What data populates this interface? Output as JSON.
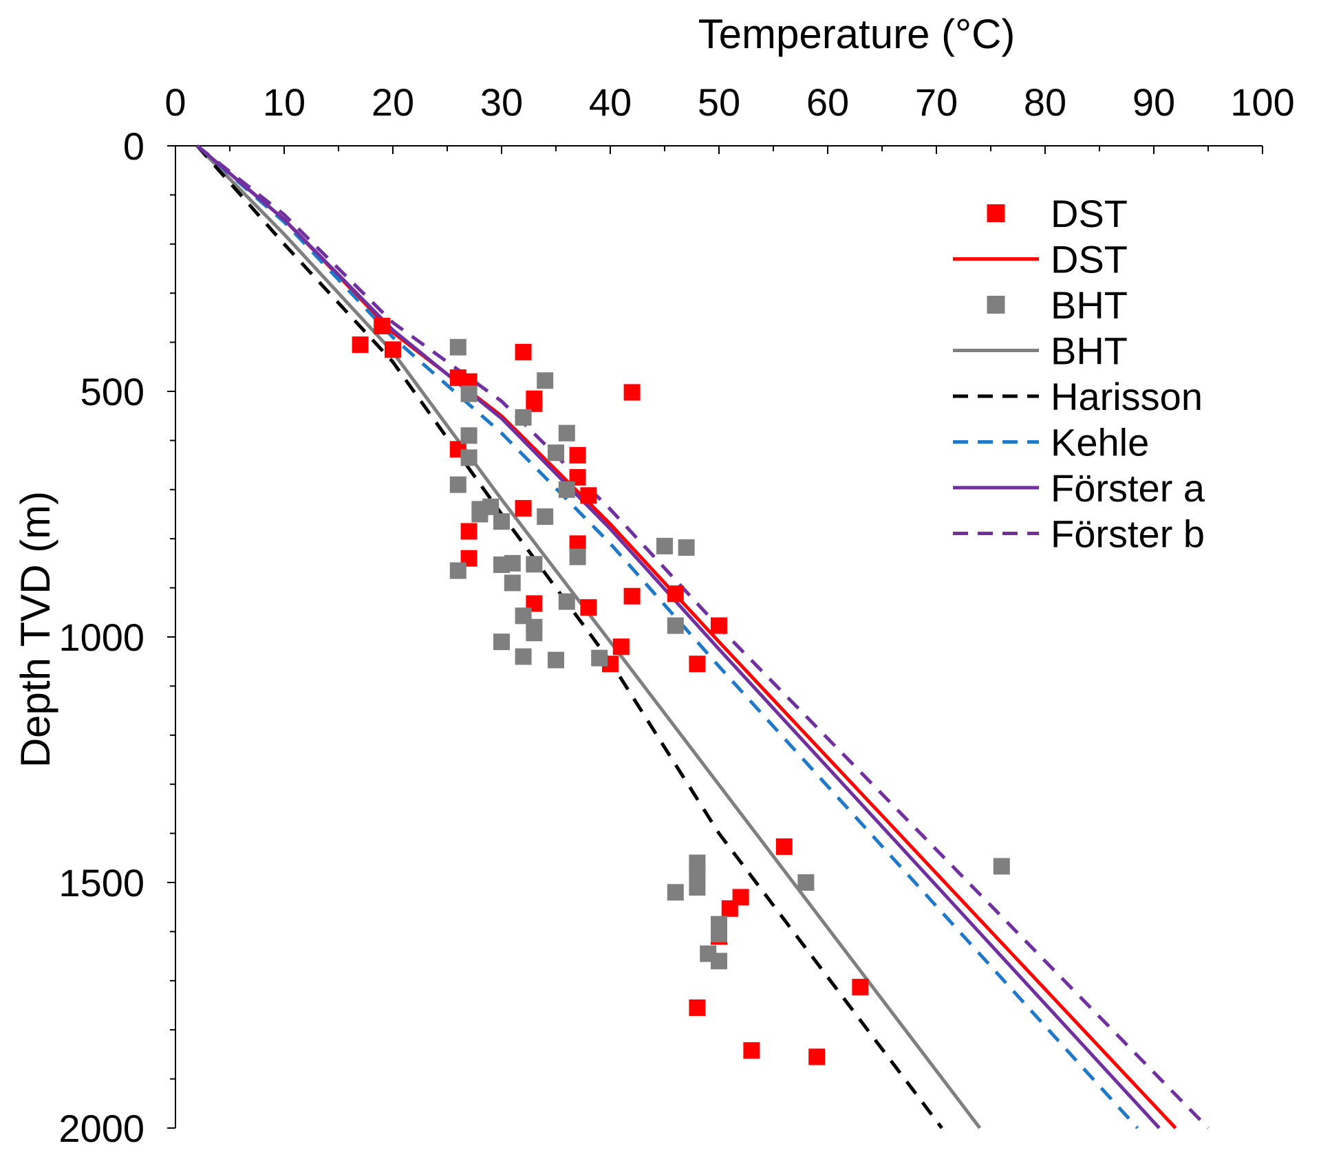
{
  "chart_data": {
    "type": "scatter",
    "title": "",
    "xlabel": "Temperature (°C)",
    "ylabel": "Depth TVD (m)",
    "xlim": [
      0,
      100
    ],
    "ylim": [
      0,
      2000
    ],
    "y_inverted": true,
    "x_axis_position": "top",
    "x_ticks": [
      0,
      10,
      20,
      30,
      40,
      50,
      60,
      70,
      80,
      90,
      100
    ],
    "x_tick_labels": [
      "0",
      "10",
      "20",
      "30",
      "40",
      "50",
      "60",
      "70",
      "80",
      "90",
      "100"
    ],
    "y_ticks": [
      0,
      500,
      1000,
      1500,
      2000
    ],
    "y_tick_labels": [
      "0",
      "500",
      "1000",
      "1500",
      "2000"
    ],
    "x_minor_step": 5,
    "y_minor_step": 100,
    "grid": false,
    "legend_position": "top-right",
    "series": [
      {
        "name": "DST",
        "kind": "points",
        "color": "#ff0000",
        "points": [
          [
            17,
            405
          ],
          [
            19,
            367
          ],
          [
            20,
            415
          ],
          [
            32,
            420
          ],
          [
            26,
            472
          ],
          [
            27,
            480
          ],
          [
            33,
            525
          ],
          [
            33,
            515
          ],
          [
            42,
            502
          ],
          [
            26,
            618
          ],
          [
            37,
            630
          ],
          [
            37,
            675
          ],
          [
            38,
            712
          ],
          [
            32,
            738
          ],
          [
            27,
            785
          ],
          [
            37,
            810
          ],
          [
            27,
            840
          ],
          [
            42,
            917
          ],
          [
            46,
            912
          ],
          [
            33,
            932
          ],
          [
            38,
            940
          ],
          [
            50,
            977
          ],
          [
            41,
            1020
          ],
          [
            40,
            1055
          ],
          [
            48,
            1055
          ],
          [
            56,
            1427
          ],
          [
            52,
            1530
          ],
          [
            51,
            1553
          ],
          [
            50,
            1610
          ],
          [
            63,
            1713
          ],
          [
            48,
            1755
          ],
          [
            53,
            1842
          ],
          [
            59,
            1855
          ]
        ]
      },
      {
        "name": "DST",
        "kind": "line",
        "color": "#ff0000",
        "dashed": false,
        "points": [
          [
            2,
            0
          ],
          [
            10,
            150
          ],
          [
            20,
            380
          ],
          [
            30,
            550
          ],
          [
            40,
            770
          ],
          [
            50,
            1010
          ],
          [
            92,
            2000
          ]
        ]
      },
      {
        "name": "BHT",
        "kind": "points",
        "color": "#7f7f7f",
        "points": [
          [
            26,
            410
          ],
          [
            34,
            478
          ],
          [
            27,
            505
          ],
          [
            32,
            553
          ],
          [
            36,
            585
          ],
          [
            27,
            590
          ],
          [
            35,
            625
          ],
          [
            27,
            635
          ],
          [
            26,
            690
          ],
          [
            36,
            700
          ],
          [
            29,
            735
          ],
          [
            28,
            740
          ],
          [
            28,
            750
          ],
          [
            34,
            755
          ],
          [
            30,
            765
          ],
          [
            45,
            815
          ],
          [
            47,
            818
          ],
          [
            37,
            837
          ],
          [
            31,
            850
          ],
          [
            30,
            853
          ],
          [
            33,
            852
          ],
          [
            26,
            865
          ],
          [
            31,
            890
          ],
          [
            36,
            928
          ],
          [
            32,
            957
          ],
          [
            33,
            980
          ],
          [
            33,
            992
          ],
          [
            46,
            977
          ],
          [
            30,
            1010
          ],
          [
            32,
            1040
          ],
          [
            35,
            1047
          ],
          [
            39,
            1043
          ],
          [
            48,
            1460
          ],
          [
            48,
            1477
          ],
          [
            76,
            1467
          ],
          [
            58,
            1500
          ],
          [
            48,
            1510
          ],
          [
            46,
            1520
          ],
          [
            50,
            1585
          ],
          [
            50,
            1605
          ],
          [
            49,
            1645
          ],
          [
            50,
            1660
          ]
        ]
      },
      {
        "name": "BHT",
        "kind": "line",
        "color": "#7f7f7f",
        "dashed": false,
        "points": [
          [
            2,
            0
          ],
          [
            10,
            180
          ],
          [
            20,
            420
          ],
          [
            30,
            720
          ],
          [
            40,
            1010
          ],
          [
            74,
            2000
          ]
        ]
      },
      {
        "name": "Harisson",
        "kind": "line",
        "color": "#000000",
        "dashed": true,
        "points": [
          [
            2,
            0
          ],
          [
            10,
            200
          ],
          [
            20,
            440
          ],
          [
            30,
            750
          ],
          [
            40,
            1050
          ],
          [
            50,
            1400
          ],
          [
            70.5,
            2000
          ]
        ]
      },
      {
        "name": "Kehle",
        "kind": "line",
        "color": "#1f78c8",
        "dashed": true,
        "points": [
          [
            2,
            0
          ],
          [
            10,
            155
          ],
          [
            20,
            390
          ],
          [
            30,
            585
          ],
          [
            40,
            810
          ],
          [
            50,
            1060
          ],
          [
            88.5,
            2000
          ]
        ]
      },
      {
        "name": "Förster a",
        "kind": "line",
        "color": "#7030a0",
        "dashed": false,
        "points": [
          [
            2,
            0
          ],
          [
            10,
            150
          ],
          [
            20,
            375
          ],
          [
            30,
            555
          ],
          [
            40,
            780
          ],
          [
            50,
            1025
          ],
          [
            90.5,
            2000
          ]
        ]
      },
      {
        "name": "Förster b",
        "kind": "line",
        "color": "#7030a0",
        "dashed": true,
        "points": [
          [
            2,
            0
          ],
          [
            10,
            140
          ],
          [
            20,
            360
          ],
          [
            30,
            520
          ],
          [
            40,
            740
          ],
          [
            50,
            980
          ],
          [
            95,
            2000
          ]
        ]
      }
    ],
    "legend": [
      {
        "label": "DST",
        "kind": "marker",
        "color": "#ff0000"
      },
      {
        "label": "DST",
        "kind": "line",
        "color": "#ff0000",
        "dashed": false
      },
      {
        "label": "BHT",
        "kind": "marker",
        "color": "#7f7f7f"
      },
      {
        "label": "BHT",
        "kind": "line",
        "color": "#7f7f7f",
        "dashed": false
      },
      {
        "label": "Harisson",
        "kind": "line",
        "color": "#000000",
        "dashed": true
      },
      {
        "label": "Kehle",
        "kind": "line",
        "color": "#1f78c8",
        "dashed": true
      },
      {
        "label": "Förster a",
        "kind": "line",
        "color": "#7030a0",
        "dashed": false
      },
      {
        "label": "Förster b",
        "kind": "line",
        "color": "#7030a0",
        "dashed": true
      }
    ]
  }
}
